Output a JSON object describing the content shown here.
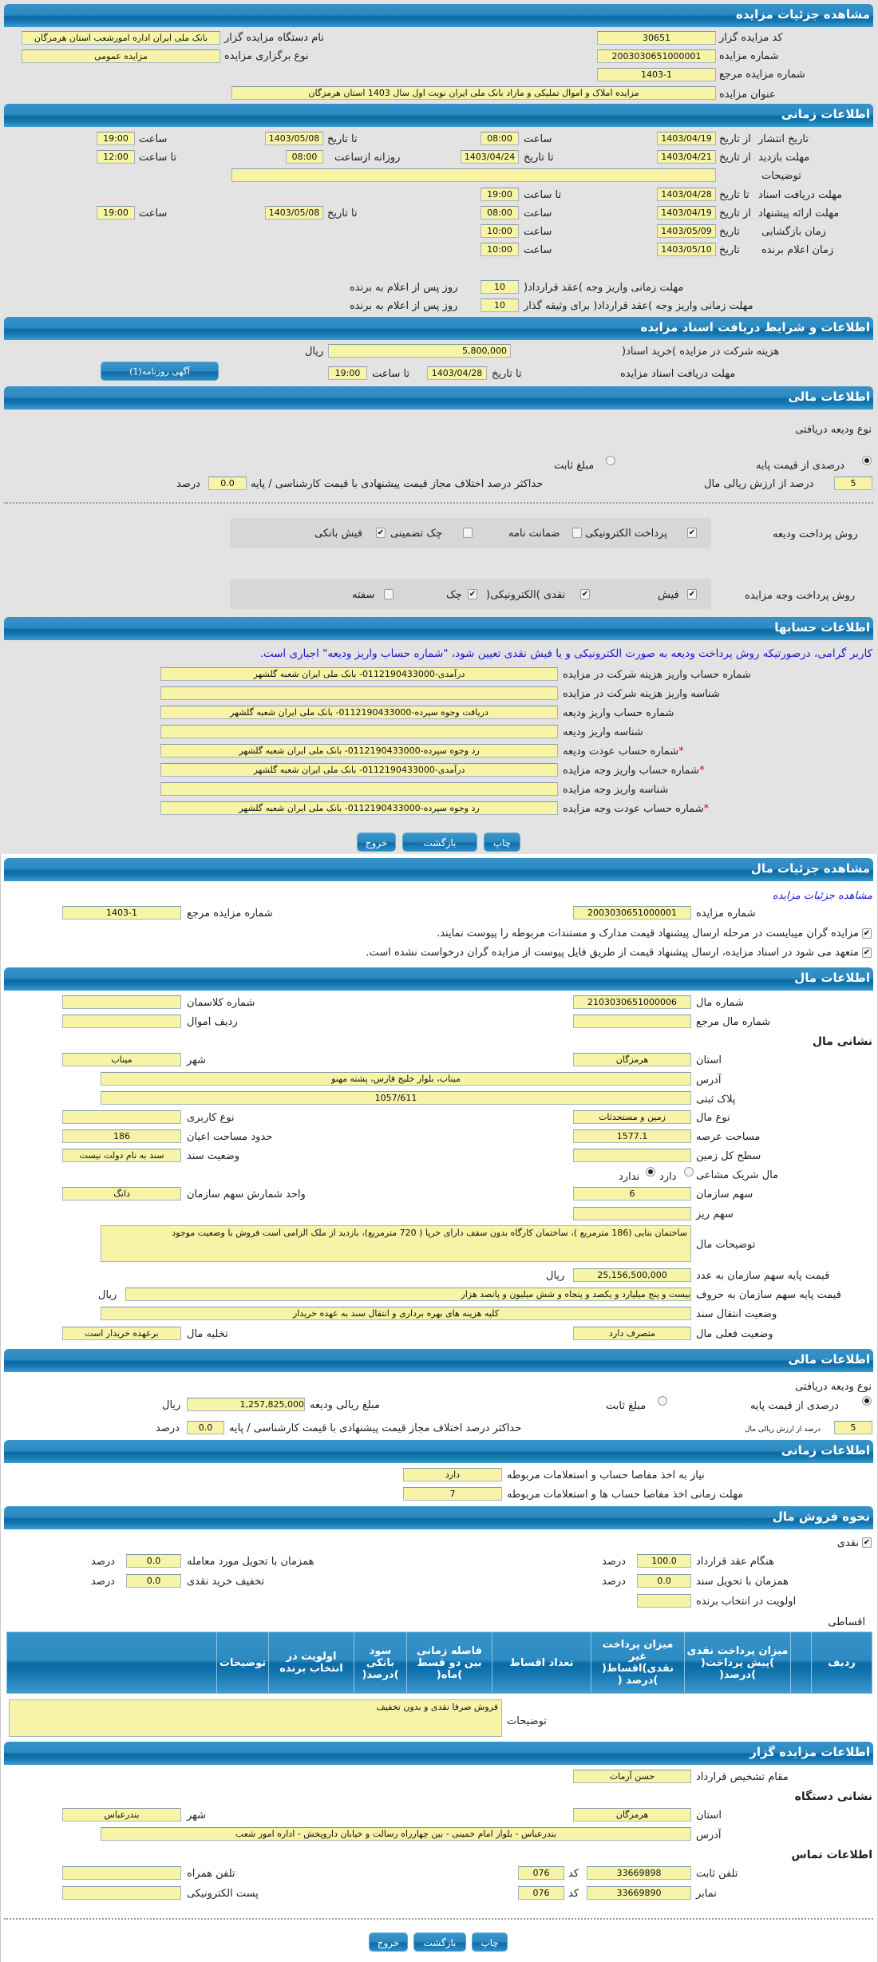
{
  "auction": {
    "header": "مشاهده جزئیات مزایده",
    "code_label": "کد مزایده گزار",
    "code": "30651",
    "org_label": "نام دستگاه مزایده گزار",
    "org": "بانک ملی ایران اداره امورشعب استان هرمزگان",
    "number_label": "شماره مزایده",
    "number": "2003030651000001",
    "type_label": "نوع برگزاری مزایده",
    "type": "مزایده عمومی",
    "ref_label": "شماره مزایده مرجع",
    "ref": "1403-1",
    "title_label": "عنوان مزایده",
    "title": "مزایده املاک و اموال تملیکی و مازاد بانک ملی ایران نوبت اول سال 1403 استان هرمزگان"
  },
  "timing": {
    "header": "اطلاعات زمانی",
    "from_date": "از تاریخ",
    "to_date": "تا تاریخ",
    "date": "تاریخ",
    "time": "ساعت",
    "to_time": "تا ساعت",
    "daily_from": "روزانه ازساعت",
    "publish": {
      "label": "تاریخ انتشار",
      "from": "1403/04/19",
      "from_time": "08:00",
      "to": "1403/05/08",
      "to_time": "19:00"
    },
    "visit": {
      "label": "مهلت بازدید",
      "from": "1403/04/21",
      "to": "1403/04/24",
      "daily_from": "08:00",
      "daily_to": "12:00"
    },
    "notes": {
      "label": "توضیحات",
      "value": ""
    },
    "docs": {
      "label": "مهلت دریافت اسناد",
      "to": "1403/04/28",
      "to_time": "19:00"
    },
    "offer": {
      "label": "مهلت ارائه پیشنهاد",
      "from": "1403/04/19",
      "from_time": "08:00",
      "to": "1403/05/08",
      "to_time": "19:00"
    },
    "opening": {
      "label": "زمان بازگشایی",
      "date": "1403/05/09",
      "time": "10:00"
    },
    "winner": {
      "label": "زمان اعلام برنده",
      "date": "1403/05/10",
      "time": "10:00"
    },
    "pay_deadline": {
      "label": "مهلت زمانی واریز وجه )عقد قرارداد(",
      "value": "10",
      "suffix": "روز پس از اعلام به برنده"
    },
    "pay_deadline_bail": {
      "label": "مهلت زمانی واریز وجه )عقد قرارداد( برای وثیقه گذار",
      "value": "10",
      "suffix": "روز پس از اعلام به برنده"
    }
  },
  "docs": {
    "header": "اطلاعات و شرایط دریافت اسناد مزایده",
    "fee_label": "هزینه شرکت در مزایده )خرید اسناد(",
    "fee": "5,800,000",
    "currency": "ریال",
    "deadline_label": "مهلت دریافت اسناد مزایده",
    "to_date_label": "تا تاریخ",
    "to_date": "1403/04/28",
    "to_time_label": "تا ساعت",
    "to_time": "19:00",
    "ad_button": "آگهی روزنامه(1)"
  },
  "finance": {
    "header": "اطلاعات مالی",
    "deposit_type_label": "نوع ودیعه دریافتی",
    "opt_percent": "درصدی از قیمت پایه",
    "opt_fixed": "مبلغ ثابت",
    "selected": "percent",
    "percent": "5",
    "percent_label": "درصد از ارزش ریالی مال",
    "max_diff_label": "حداکثر درصد اختلاف مجاز قیمت پیشنهادی با قیمت کارشناسی / پایه",
    "max_diff": "0.0",
    "percent_unit": "درصد",
    "deposit_method_label": "روش پرداخت ودیعه",
    "deposit_methods": [
      {
        "label": "پرداخت الکترونیکی",
        "checked": true
      },
      {
        "label": "ضمانت نامه",
        "checked": false
      },
      {
        "label": "چک تضمینی",
        "checked": false
      },
      {
        "label": "فیش بانکی",
        "checked": true
      }
    ],
    "payment_method_label": "روش پرداخت وجه مزایده",
    "payment_methods": [
      {
        "label": "فیش",
        "checked": true
      },
      {
        "label": "نقدی )الکترونیکی(",
        "checked": true
      },
      {
        "label": "چک",
        "checked": true
      },
      {
        "label": "سفته",
        "checked": false
      }
    ]
  },
  "accounts": {
    "header": "اطلاعات حسابها",
    "notice": "کاربر گرامی، درصورتیکه روش پرداخت ودیعه به صورت الکترونیکی و یا فیش نقدی تعیین شود، \"شماره حساب واریز ودیعه\" اجباری است.",
    "rows": [
      {
        "label": "شماره حساب واریز هزینه شرکت در مزایده",
        "value": "درآمدی-0112190433000- بانک ملی ایران شعبه گلشهر"
      },
      {
        "label": "شناسه واریز هزینه شرکت در مزایده",
        "value": ""
      },
      {
        "label": "شماره حساب واریز ودیعه",
        "value": "دریافت وجوه سپرده-0112190433000- بانک ملی ایران شعبه گلشهر"
      },
      {
        "label": "شناسه واریز ودیعه",
        "value": ""
      },
      {
        "label": "شماره حساب عودت ودیعه",
        "value": "رد وجوه سپرده-0112190433000- بانک ملی ایران شعبه گلشهر",
        "required": "*"
      },
      {
        "label": "شماره حساب واریز وجه مزایده",
        "value": "درآمدی-0112190433000- بانک ملی ایران شعبه گلشهر",
        "required": "*"
      },
      {
        "label": "شناسه واریز وجه مزایده",
        "value": ""
      },
      {
        "label": "شماره حساب عودت وجه مزایده",
        "value": "رد وجوه سپرده-0112190433000- بانک ملی ایران شعبه گلشهر",
        "required": "*"
      }
    ]
  },
  "buttons": {
    "print": "چاپ",
    "back": "بازگشت",
    "exit": "خروج"
  },
  "item": {
    "header": "مشاهده جزئیات مال",
    "auction_link": "مشاهده جزئیات مزایده",
    "number_label": "شماره مزایده",
    "number": "2003030651000001",
    "ref_label": "شماره مزایده مرجع",
    "ref": "1403-1",
    "check1": "مزایده گران میبایست در مرحله ارسال پیشنهاد قیمت مدارک و مستندات مربوطه را پیوست نمایند.",
    "check2": "متعهد می شود در اسناد مزایده، ارسال پیشنهاد قیمت از طریق فایل پیوست از مزایده گران درخواست نشده است."
  },
  "property": {
    "header": "اطلاعات مال",
    "number_label": "شماره مال",
    "number": "2103030651000006",
    "class_label": "شماره کلاسمان",
    "class": "",
    "ref_label": "شماره مال مرجع",
    "ref": "",
    "row_label": "ردیف اموال",
    "row": "",
    "address_title": "نشانی مال",
    "province_label": "استان",
    "province": "هرمزگان",
    "city_label": "شهر",
    "city": "میناب",
    "address_label": "آدرس",
    "address": "میناب، بلوار خلیج فارس، پشته مهنو",
    "plate_label": "پلاک ثبتی",
    "plate": "1057/611",
    "kind_label": "نوع مال",
    "kind": "زمین و مستحدثات",
    "usage_label": "نوع کاربری",
    "usage": "",
    "land_area_label": "مساحت عرصه",
    "land_area": "1577.1",
    "building_area_label": "حدود مساحت اعیان",
    "building_area": "186",
    "total_area_label": "سطح کل زمین",
    "total_area": "",
    "deed_label": "وضعیت سند",
    "deed": "سند به نام دولت نیست",
    "shared_label": "مال شریک مشاعی",
    "shared_yes": "دارد",
    "shared_no": "ندارد",
    "shared": "no",
    "share_label": "سهم سازمان",
    "share": "6",
    "share_unit_label": "واحد شمارش سهم سازمان",
    "share_unit": "دانگ",
    "small_share_label": "سهم ریز",
    "small_share": "",
    "desc_label": "توضیحات مال",
    "desc": "ساختمان بنایی (186 مترمربع )، ساختمان کارگاه بدون سقف دارای خرپا ( 720 مترمربع)، بازدید از ملک الزامی است فروش با وضعیت موجود",
    "price_label": "قیمت پایه سهم سازمان به عدد",
    "price": "25,156,500,000",
    "price_words_label": "قیمت پایه سهم سازمان به حروف",
    "price_words": "بیست و پنج میلیارد و یکصد و پنجاه و شش میلیون و پانصد هزار",
    "currency": "ریال",
    "transfer_label": "وضعیت انتقال سند",
    "transfer": "کلیه هزینه های بهره برداری و انتقال سند به عهده خریدار",
    "status_label": "وضعیت فعلی مال",
    "status": "متصرف دارد",
    "evict_label": "تخلیه مال",
    "evict": "برعهده خریدار است"
  },
  "finance2": {
    "header": "اطلاعات مالی",
    "deposit_type_label": "نوع ودیعه دریافتی",
    "opt_percent": "درصدی از قیمت پایه",
    "opt_fixed": "مبلغ ثابت",
    "selected": "percent",
    "amount_label": "مبلغ ریالی ودیعه",
    "amount": "1,257,825,000",
    "currency": "ریال",
    "percent": "5",
    "percent_label": "درصد از ارزش ریالی مال",
    "max_diff_label": "حداکثر درصد اختلاف مجاز قیمت پیشنهادی با قیمت کارشناسی / پایه",
    "max_diff": "0.0",
    "percent_unit": "درصد"
  },
  "timing2": {
    "header": "اطلاعات زمانی",
    "clearance_label": "نیاز به اخذ مفاصا حساب و استعلامات مربوطه",
    "clearance": "دارد",
    "clearance_deadline_label": "مهلت زمانی اخذ مفاصا حساب ها و استعلامات مربوطه",
    "clearance_deadline": "7"
  },
  "sale": {
    "header": "نحوه فروش مال",
    "cash_label": "نقدی",
    "cash_checked": true,
    "contract_label": "هنگام عقد قرارداد",
    "contract": "100.0",
    "deed_label": "همزمان با تحویل سند",
    "deed": "0.0",
    "priority_label": "اولویت در انتخاب برنده",
    "priority": "",
    "delivery_label": "همزمان با تحویل مورد معامله",
    "delivery": "0.0",
    "discount_label": "تخفیف خرید نقدی",
    "discount": "0.0",
    "unit": "درصد",
    "installment_label": "اقساطی",
    "table_headers": [
      "ردیف",
      "",
      "میزان پرداخت نقدی )پیش پرداخت( )درصد(",
      "میزان پرداخت غیر نقدی)اقساط( )درصد (",
      "تعداد اقساط",
      "فاصله زمانی بین دو قسط )ماه(",
      "سود بانکی )درصد(",
      "اولویت در انتخاب برنده",
      "توضیحات",
      ""
    ],
    "notes_label": "توضیحات",
    "notes": "فروش صرفا نقدی و بدون تخفیف"
  },
  "auctioneer": {
    "header": "اطلاعات مزایده گزار",
    "authority_label": "مقام تشخیص قرارداد",
    "authority": "حسن آرمات",
    "org_address_title": "نشانی دستگاه",
    "province_label": "استان",
    "province": "هرمزگان",
    "city_label": "شهر",
    "city": "بندرعباس",
    "address_label": "آدرس",
    "address": "بندرعباس - بلوار امام خمینی - بین چهارراه رسالت و خیابان داروپخش - اداره امور شعب",
    "contact_title": "اطلاعات تماس",
    "phone_label": "تلفن ثابت",
    "phone": "33669898",
    "code_label": "کد",
    "phone_code": "076",
    "fax_label": "نمابر",
    "fax": "33669890",
    "fax_code": "076",
    "mobile_label": "تلفن همراه",
    "mobile": "",
    "email_label": "پست الکترونیکی",
    "email": ""
  },
  "colors": {
    "header_blue": "#0a6aa5",
    "field_yellow": "#f7f4a8",
    "notice_blue": "#1a1ad0",
    "panel_gray": "#e3e3e3"
  }
}
